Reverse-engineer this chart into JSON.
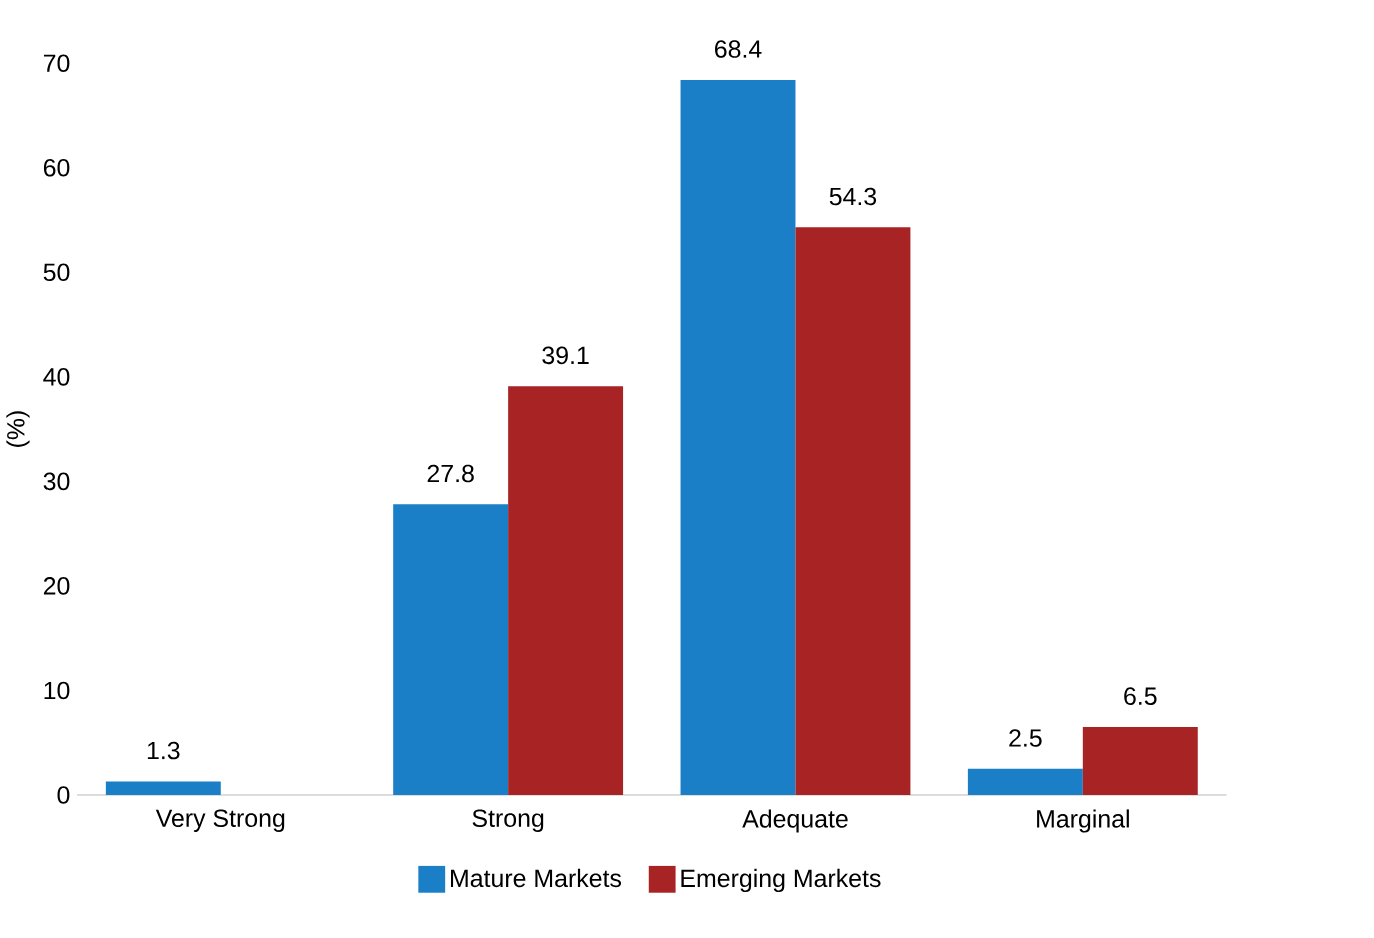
{
  "chart_data": {
    "type": "bar",
    "ylabel": "(%)",
    "categories": [
      "Very Strong",
      "Strong",
      "Adequate",
      "Marginal"
    ],
    "series": [
      {
        "name": "Mature Markets",
        "color": "#1a7fc6",
        "values": [
          1.3,
          27.8,
          68.4,
          2.5
        ]
      },
      {
        "name": "Emerging Markets",
        "color": "#a82324",
        "values": [
          null,
          39.1,
          54.3,
          6.5
        ]
      }
    ],
    "ylim": [
      0,
      70
    ],
    "yticks": [
      0,
      10,
      20,
      30,
      40,
      50,
      60,
      70
    ],
    "grid": false,
    "legend": "bottom",
    "data_labels": true
  }
}
